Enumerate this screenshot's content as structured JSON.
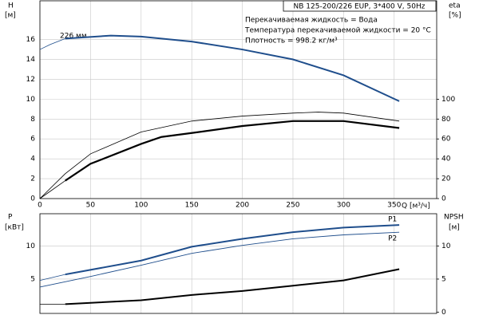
{
  "chart_data": [
    {
      "type": "line",
      "title": "NB 125-200/226 EUP, 3*400 V, 50Hz",
      "annotations": [
        "Перекачиваемая жидкость = Вода",
        "Температура перекачиваемой жидкости = 20 °C",
        "Плотность = 998.2 кг/м³"
      ],
      "curve_label": "226 мм",
      "ylabel": "H",
      "yunit": "[м]",
      "y2label": "eta",
      "y2unit": "[%]",
      "xlabel": "Q [м³/ч]",
      "xlim": [
        0,
        392
      ],
      "xticks": [
        0,
        50,
        100,
        150,
        200,
        250,
        300,
        350
      ],
      "ylim": [
        0,
        19.9
      ],
      "yticks": [
        0,
        2,
        4,
        6,
        8,
        10,
        12,
        14,
        16
      ],
      "y2lim": [
        0,
        199
      ],
      "y2ticks": [
        0,
        20,
        40,
        60,
        80,
        100
      ],
      "grid": true,
      "series": [
        {
          "color": "#1f4e8c",
          "width": 0.8,
          "x": [
            0,
            10,
            25
          ],
          "values": [
            15,
            15.5,
            16.1
          ]
        },
        {
          "color": "#1f4e8c",
          "width": 2,
          "x": [
            25,
            70,
            100,
            150,
            200,
            250,
            300,
            355
          ],
          "values": [
            16.1,
            16.4,
            16.3,
            15.8,
            15,
            14,
            12.4,
            9.8
          ]
        },
        {
          "color": "#000000",
          "width": 0.8,
          "axis": "y2",
          "x": [
            0,
            25,
            50,
            100,
            150,
            200,
            250,
            275,
            300,
            355
          ],
          "values": [
            0,
            25,
            45,
            67,
            78,
            83,
            86,
            87,
            86,
            78
          ]
        },
        {
          "color": "#000000",
          "width": 0.8,
          "axis": "y2",
          "x": [
            0,
            25
          ],
          "values": [
            0,
            18
          ]
        },
        {
          "color": "#000000",
          "width": 2.2,
          "axis": "y2",
          "x": [
            25,
            50,
            100,
            120,
            150,
            200,
            250,
            275,
            300,
            355
          ],
          "values": [
            18,
            35,
            55,
            62,
            66,
            73,
            78,
            78,
            78,
            71
          ]
        }
      ]
    },
    {
      "type": "line",
      "ylabel": "P",
      "yunit": "[кВт]",
      "y2label": "NPSH",
      "y2unit": "[м]",
      "xlim": [
        0,
        392
      ],
      "ylim": [
        -0.2,
        14.9
      ],
      "yticks": [
        5,
        10
      ],
      "y2lim": [
        -0.2,
        14.9
      ],
      "y2ticks": [
        0,
        5,
        10
      ],
      "grid": true,
      "series": [
        {
          "color": "#1f4e8c",
          "width": 0.8,
          "x": [
            0,
            25
          ],
          "values": [
            4.8,
            5.7
          ]
        },
        {
          "name": "P1",
          "color": "#1f4e8c",
          "width": 2,
          "x": [
            25,
            100,
            150,
            200,
            250,
            300,
            355
          ],
          "values": [
            5.7,
            7.8,
            9.9,
            11.1,
            12.1,
            12.8,
            13.2
          ]
        },
        {
          "name": "P2",
          "color": "#1f4e8c",
          "width": 0.9,
          "x": [
            0,
            50,
            100,
            150,
            200,
            250,
            300,
            355
          ],
          "values": [
            3.8,
            5.4,
            7.1,
            8.9,
            10.1,
            11.1,
            11.7,
            12.1
          ]
        },
        {
          "color": "#000000",
          "width": 0.8,
          "axis": "y2",
          "x": [
            0,
            25
          ],
          "values": [
            1.2,
            1.2
          ]
        },
        {
          "color": "#000000",
          "width": 2,
          "axis": "y2",
          "x": [
            25,
            100,
            150,
            200,
            250,
            300,
            355
          ],
          "values": [
            1.2,
            1.8,
            2.6,
            3.2,
            4.0,
            4.8,
            6.5
          ]
        }
      ]
    }
  ]
}
